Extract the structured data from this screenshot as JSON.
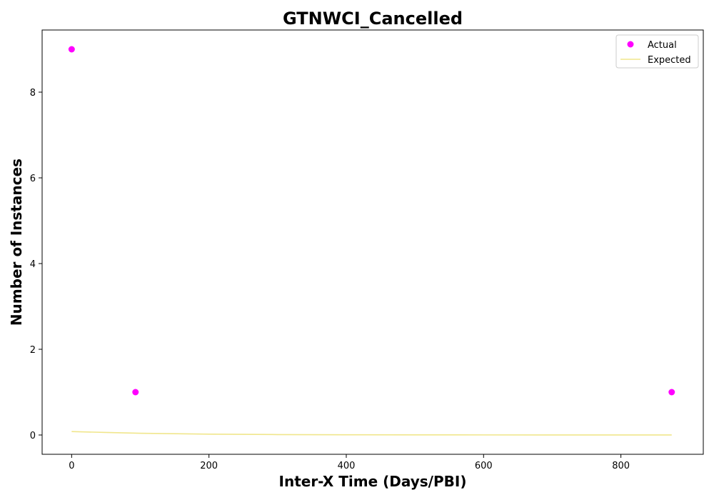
{
  "chart_data": {
    "type": "scatter",
    "title": "GTNWCI_Cancelled",
    "xlabel": "Inter-X Time (Days/PBI)",
    "ylabel": "Number of Instances",
    "xlim": [
      -43,
      920
    ],
    "ylim": [
      -0.45,
      9.45
    ],
    "x_ticks": [
      0,
      200,
      400,
      600,
      800
    ],
    "y_ticks": [
      0,
      2,
      4,
      6,
      8
    ],
    "grid": false,
    "legend_position": "top-right",
    "series": [
      {
        "name": "Actual",
        "kind": "scatter",
        "color": "#ff00ff",
        "points": [
          {
            "x": 0,
            "y": 9
          },
          {
            "x": 93,
            "y": 1
          },
          {
            "x": 874,
            "y": 1
          }
        ]
      },
      {
        "name": "Expected",
        "kind": "line",
        "color": "#f0e68c",
        "points": [
          {
            "x": 0,
            "y": 0.08
          },
          {
            "x": 50,
            "y": 0.06
          },
          {
            "x": 100,
            "y": 0.04
          },
          {
            "x": 150,
            "y": 0.03
          },
          {
            "x": 200,
            "y": 0.02
          },
          {
            "x": 300,
            "y": 0.01
          },
          {
            "x": 400,
            "y": 0.005
          },
          {
            "x": 500,
            "y": 0.003
          },
          {
            "x": 600,
            "y": 0.002
          },
          {
            "x": 700,
            "y": 0.001
          },
          {
            "x": 800,
            "y": 0.0005
          },
          {
            "x": 874,
            "y": 0.0003
          }
        ]
      }
    ]
  }
}
